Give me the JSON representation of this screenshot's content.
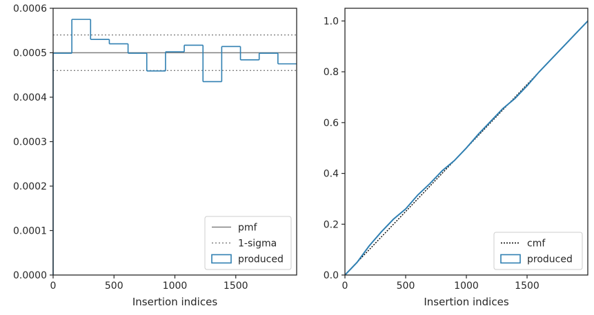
{
  "colors": {
    "produced": "#2f7fb1",
    "pmf": "#808080",
    "sigma": "#808080",
    "cmf": "#000000",
    "axis": "#262626"
  },
  "chart_data": [
    {
      "type": "histogram",
      "xlabel": "Insertion indices",
      "ylabel": "",
      "xlim": [
        0,
        2000
      ],
      "ylim": [
        0,
        0.0006
      ],
      "xticks": [
        0,
        500,
        1000,
        1500
      ],
      "xtick_labels": [
        "0",
        "500",
        "1000",
        "1500"
      ],
      "yticks": [
        0,
        0.0001,
        0.0002,
        0.0003,
        0.0004,
        0.0005,
        0.0006
      ],
      "ytick_labels": [
        "0.0000",
        "0.0001",
        "0.0002",
        "0.0003",
        "0.0004",
        "0.0005",
        "0.0006"
      ],
      "legend_position": "lower-right",
      "legend": [
        "pmf",
        "1-sigma",
        "produced"
      ],
      "pmf": 0.0005,
      "sigma_band": [
        0.00046,
        0.00054
      ],
      "series": [
        {
          "name": "produced",
          "bin_edges": [
            0,
            153.8,
            307.7,
            461.5,
            615.4,
            769.2,
            923.1,
            1076.9,
            1230.8,
            1384.6,
            1538.5,
            1692.3,
            1846.2,
            2000
          ],
          "values": [
            0.000499,
            0.000575,
            0.00053,
            0.00052,
            0.000499,
            0.000459,
            0.000502,
            0.000517,
            0.000435,
            0.000514,
            0.000484,
            0.000499,
            0.000475
          ]
        }
      ]
    },
    {
      "type": "line",
      "xlabel": "Insertion indices",
      "ylabel": "",
      "xlim": [
        0,
        2000
      ],
      "ylim": [
        0,
        1.05
      ],
      "xticks": [
        0,
        500,
        1000,
        1500
      ],
      "xtick_labels": [
        "0",
        "500",
        "1000",
        "1500"
      ],
      "yticks": [
        0,
        0.2,
        0.4,
        0.6,
        0.8,
        1.0
      ],
      "ytick_labels": [
        "0.0",
        "0.2",
        "0.4",
        "0.6",
        "0.8",
        "1.0"
      ],
      "legend_position": "lower-right",
      "legend": [
        "cmf",
        "produced"
      ],
      "series": [
        {
          "name": "cmf",
          "x": [
            0,
            2000
          ],
          "y": [
            0,
            1.0
          ]
        },
        {
          "name": "produced",
          "x": [
            0,
            100,
            200,
            300,
            400,
            500,
            600,
            700,
            800,
            900,
            1000,
            1100,
            1200,
            1300,
            1400,
            1500,
            1600,
            1700,
            1800,
            1900,
            2000
          ],
          "y": [
            0,
            0.05,
            0.115,
            0.17,
            0.22,
            0.26,
            0.315,
            0.36,
            0.41,
            0.45,
            0.5,
            0.555,
            0.605,
            0.655,
            0.695,
            0.745,
            0.8,
            0.85,
            0.9,
            0.95,
            1.0
          ]
        }
      ]
    }
  ]
}
